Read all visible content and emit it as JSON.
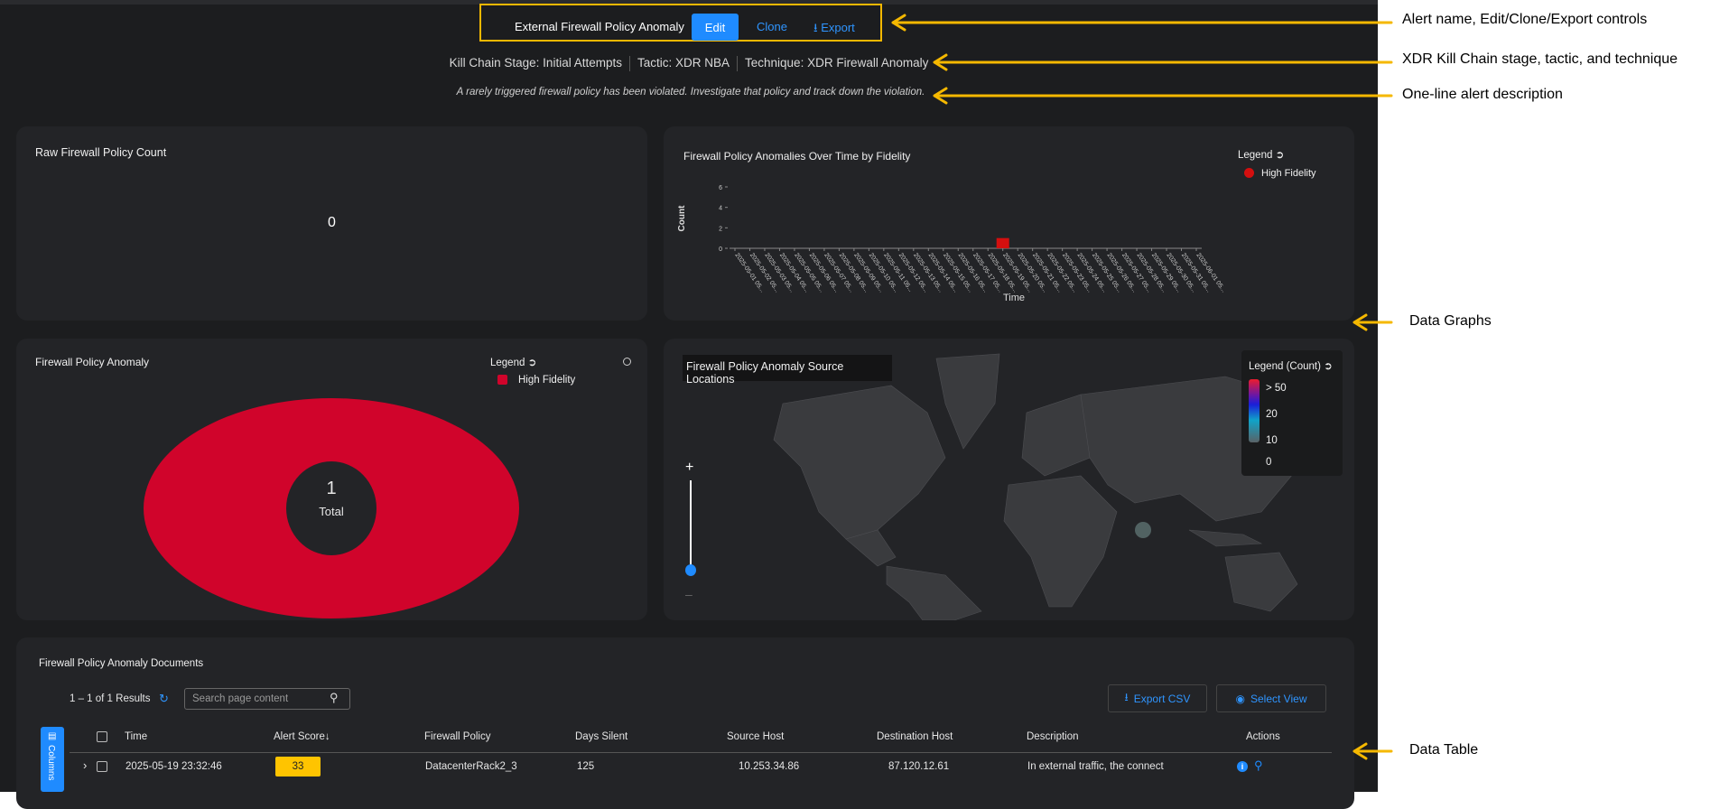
{
  "header": {
    "alert_name": "External Firewall Policy Anomaly",
    "edit_label": "Edit",
    "clone_label": "Clone",
    "export_label": "Export",
    "icons": {
      "export": "download-icon"
    }
  },
  "kill_chain": {
    "stage": "Kill Chain Stage: Initial Attempts",
    "tactic": "Tactic: XDR NBA",
    "technique": "Technique: XDR Firewall Anomaly"
  },
  "description": "A rarely triggered firewall policy has been violated. Investigate that policy and track down the violation.",
  "panels": {
    "raw_count": {
      "title": "Raw Firewall Policy Count",
      "value": "0"
    },
    "over_time": {
      "title": "Firewall Policy Anomalies Over Time by Fidelity",
      "legend_title": "Legend",
      "legend_item": "High Fidelity"
    },
    "donut": {
      "title": "Firewall Policy Anomaly",
      "legend_title": "Legend",
      "legend_item": "High Fidelity",
      "total_value": "1",
      "total_label": "Total"
    },
    "map": {
      "title": "Firewall Policy Anomaly Source Locations",
      "legend_title": "Legend (Count)",
      "scale_labels": [
        "> 50",
        "20",
        "10",
        "0"
      ],
      "zoom_in": "+",
      "zoom_out": "–"
    }
  },
  "chart_data": [
    {
      "type": "bar",
      "title": "Firewall Policy Anomalies Over Time by Fidelity",
      "xlabel": "Time",
      "ylabel": "Count",
      "ylim": [
        0,
        6
      ],
      "yticks": [
        0,
        2,
        4,
        6
      ],
      "x": [
        "2025-05-01",
        "2025-05-02",
        "2025-05-03",
        "2025-05-04",
        "2025-05-05",
        "2025-05-06",
        "2025-05-07",
        "2025-05-08",
        "2025-05-09",
        "2025-05-10",
        "2025-05-11",
        "2025-05-12",
        "2025-05-13",
        "2025-05-14",
        "2025-05-15",
        "2025-05-16",
        "2025-05-17",
        "2025-05-18",
        "2025-05-19",
        "2025-05-20",
        "2025-05-21",
        "2025-05-22",
        "2025-05-23",
        "2025-05-24",
        "2025-05-25",
        "2025-05-26",
        "2025-05-27",
        "2025-05-28",
        "2025-05-29",
        "2025-05-30",
        "2025-05-31",
        "2025-06-01"
      ],
      "tick_labels": [
        "2025-05-01 05...",
        "2025-05-02 05...",
        "2025-05-03 05...",
        "2025-05-04 05...",
        "2025-05-05 05...",
        "2025-05-06 05...",
        "2025-05-07 05...",
        "2025-05-08 05...",
        "2025-05-09 05...",
        "2025-05-10 05...",
        "2025-05-11 05...",
        "2025-05-12 05...",
        "2025-05-13 05...",
        "2025-05-14 05...",
        "2025-05-15 05...",
        "2025-05-16 05...",
        "2025-05-17 05...",
        "2025-05-18 05...",
        "2025-05-19 05...",
        "2025-05-20 05...",
        "2025-05-21 05...",
        "2025-05-22 05...",
        "2025-05-23 05...",
        "2025-05-24 05...",
        "2025-05-25 05...",
        "2025-05-26 05...",
        "2025-05-27 05...",
        "2025-05-28 05...",
        "2025-05-29 05...",
        "2025-05-30 05...",
        "2025-05-31 05...",
        "2025-06-01 05..."
      ],
      "series": [
        {
          "name": "High Fidelity",
          "color": "#d40f0f",
          "values": [
            0,
            0,
            0,
            0,
            0,
            0,
            0,
            0,
            0,
            0,
            0,
            0,
            0,
            0,
            0,
            0,
            0,
            0,
            1,
            0,
            0,
            0,
            0,
            0,
            0,
            0,
            0,
            0,
            0,
            0,
            0,
            0
          ]
        }
      ],
      "legend": "top-right",
      "grid": false
    },
    {
      "type": "pie",
      "title": "Firewall Policy Anomaly",
      "categories": [
        "High Fidelity"
      ],
      "values": [
        1
      ],
      "colors": [
        "#d0042b"
      ],
      "donut": true,
      "legend": "top-right"
    }
  ],
  "table": {
    "title": "Firewall Policy Anomaly Documents",
    "results": "1 – 1 of 1 Results",
    "search_placeholder": "Search page content",
    "export_csv": "Export CSV",
    "select_view": "Select View",
    "columns_label": "Columns",
    "headers": [
      "Time",
      "Alert Score",
      "Firewall Policy",
      "Days Silent",
      "Source Host",
      "Destination Host",
      "Description",
      "Actions"
    ],
    "sort_indicator": "↓",
    "rows": [
      {
        "time": "2025-05-19 23:32:46",
        "alert_score": "33",
        "firewall_policy": "DatacenterRack2_3",
        "days_silent": "125",
        "source_host": "10.253.34.86",
        "destination_host": "87.120.12.61",
        "description": "In external traffic, the connect"
      }
    ],
    "score_color": "#ffc400"
  },
  "annotations": [
    "Alert name, Edit/Clone/Export controls",
    "XDR Kill Chain stage, tactic, and technique",
    "One-line alert description",
    "Data Graphs",
    "Data Table"
  ],
  "colors": {
    "accent": "#1f8bff",
    "annotation": "#f5b800",
    "background": "#1c1d1f",
    "panel": "#232427"
  }
}
